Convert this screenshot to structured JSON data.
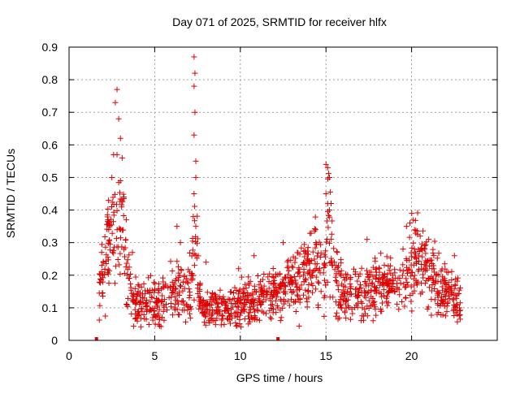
{
  "chart_data": {
    "type": "scatter",
    "title": "Day 071 of 2025, SRMTID for receiver hlfx",
    "xlabel": "GPS time / hours",
    "ylabel": "SRMTID / TECUs",
    "xlim": [
      0,
      25
    ],
    "ylim": [
      0,
      0.9
    ],
    "x_ticks": [
      "0",
      "5",
      "10",
      "15",
      "20"
    ],
    "y_ticks": [
      "0",
      "0.1",
      "0.2",
      "0.3",
      "0.4",
      "0.5",
      "0.6",
      "0.7",
      "0.8",
      "0.9"
    ],
    "grid": true,
    "marker": "plus",
    "series_color": "#e00000",
    "envelope": [
      [
        1.6,
        0.0
      ],
      [
        1.8,
        0.17
      ],
      [
        2.0,
        0.22
      ],
      [
        2.2,
        0.28
      ],
      [
        2.4,
        0.32
      ],
      [
        2.6,
        0.36
      ],
      [
        2.8,
        0.42
      ],
      [
        3.0,
        0.38
      ],
      [
        3.2,
        0.3
      ],
      [
        3.4,
        0.22
      ],
      [
        3.6,
        0.15
      ],
      [
        3.8,
        0.12
      ],
      [
        4.0,
        0.11
      ],
      [
        4.5,
        0.12
      ],
      [
        5.0,
        0.12
      ],
      [
        5.5,
        0.13
      ],
      [
        6.0,
        0.14
      ],
      [
        6.5,
        0.15
      ],
      [
        6.8,
        0.15
      ],
      [
        7.0,
        0.17
      ],
      [
        7.2,
        0.22
      ],
      [
        7.4,
        0.3
      ],
      [
        7.6,
        0.15
      ],
      [
        7.8,
        0.1
      ],
      [
        8.0,
        0.09
      ],
      [
        8.5,
        0.1
      ],
      [
        9.0,
        0.1
      ],
      [
        9.5,
        0.1
      ],
      [
        10.0,
        0.11
      ],
      [
        10.5,
        0.12
      ],
      [
        11.0,
        0.12
      ],
      [
        11.5,
        0.13
      ],
      [
        12.0,
        0.14
      ],
      [
        12.5,
        0.15
      ],
      [
        13.0,
        0.17
      ],
      [
        13.5,
        0.19
      ],
      [
        14.0,
        0.22
      ],
      [
        14.3,
        0.24
      ],
      [
        14.6,
        0.2
      ],
      [
        14.9,
        0.18
      ],
      [
        15.1,
        0.32
      ],
      [
        15.3,
        0.3
      ],
      [
        15.5,
        0.2
      ],
      [
        15.8,
        0.16
      ],
      [
        16.0,
        0.15
      ],
      [
        16.5,
        0.14
      ],
      [
        17.0,
        0.14
      ],
      [
        17.5,
        0.15
      ],
      [
        18.0,
        0.16
      ],
      [
        18.5,
        0.17
      ],
      [
        19.0,
        0.17
      ],
      [
        19.5,
        0.18
      ],
      [
        19.8,
        0.2
      ],
      [
        20.0,
        0.24
      ],
      [
        20.3,
        0.26
      ],
      [
        20.6,
        0.23
      ],
      [
        21.0,
        0.2
      ],
      [
        21.5,
        0.17
      ],
      [
        22.0,
        0.15
      ],
      [
        22.5,
        0.14
      ],
      [
        22.8,
        0.12
      ]
    ],
    "spikes": [
      [
        2.7,
        0.73
      ],
      [
        2.8,
        0.77
      ],
      [
        2.9,
        0.68
      ],
      [
        3.0,
        0.62
      ],
      [
        2.6,
        0.57
      ],
      [
        2.8,
        0.57
      ],
      [
        3.1,
        0.56
      ],
      [
        2.5,
        0.5
      ],
      [
        3.0,
        0.49
      ],
      [
        3.2,
        0.44
      ],
      [
        7.3,
        0.87
      ],
      [
        7.35,
        0.82
      ],
      [
        7.3,
        0.78
      ],
      [
        7.35,
        0.7
      ],
      [
        7.3,
        0.63
      ],
      [
        7.4,
        0.55
      ],
      [
        7.4,
        0.5
      ],
      [
        7.3,
        0.45
      ],
      [
        7.25,
        0.38
      ],
      [
        7.4,
        0.35
      ],
      [
        15.0,
        0.54
      ],
      [
        15.1,
        0.53
      ],
      [
        15.2,
        0.5
      ],
      [
        15.0,
        0.45
      ],
      [
        15.3,
        0.42
      ],
      [
        15.2,
        0.4
      ],
      [
        14.4,
        0.34
      ],
      [
        19.9,
        0.36
      ],
      [
        19.7,
        0.35
      ],
      [
        20.5,
        0.32
      ],
      [
        6.3,
        0.35
      ],
      [
        6.5,
        0.3
      ],
      [
        12.5,
        0.3
      ],
      [
        17.4,
        0.31
      ],
      [
        21.0,
        0.31
      ],
      [
        22.5,
        0.26
      ],
      [
        3.7,
        0.27
      ],
      [
        10.8,
        0.26
      ],
      [
        8.0,
        0.24
      ],
      [
        9.9,
        0.22
      ]
    ],
    "baseline_marks": [
      1.6,
      12.2
    ],
    "n_points": 1400,
    "seed": 71
  }
}
